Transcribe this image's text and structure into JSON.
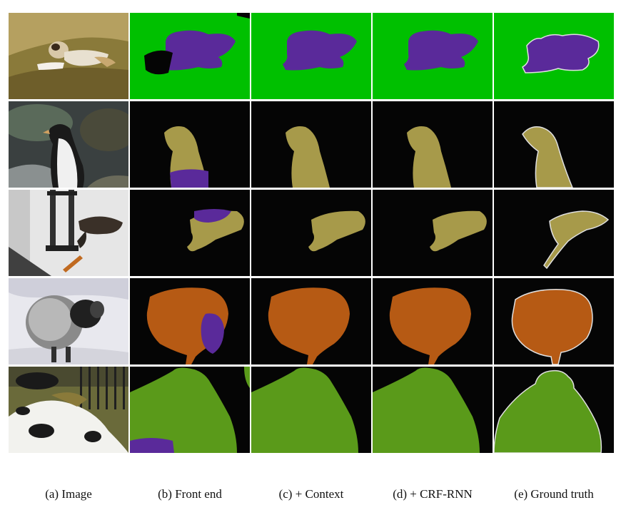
{
  "figure": {
    "columns": [
      {
        "id": "image",
        "caption": "(a) Image"
      },
      {
        "id": "front-end",
        "caption": "(b) Front end"
      },
      {
        "id": "context",
        "caption": "(c) + Context"
      },
      {
        "id": "crf-rnn",
        "caption": "(d) + CRF-RNN"
      },
      {
        "id": "ground-truth",
        "caption": "(e) Ground truth"
      }
    ],
    "rows": [
      {
        "id": "dog",
        "subject": "dog lying on sofa"
      },
      {
        "id": "penguin",
        "subject": "penguin"
      },
      {
        "id": "bird-feeder",
        "subject": "bird at feeder"
      },
      {
        "id": "sheep",
        "subject": "sheep"
      },
      {
        "id": "cow",
        "subject": "cow"
      }
    ],
    "colors": {
      "background": "#050505",
      "sofa": "#00c000",
      "dog": "#5a2a9a",
      "bird": "#a79a4a",
      "sheep": "#b65a14",
      "cow": "#5a9a1a",
      "wrong_class": "#5a2a9a",
      "boundary": "#e0e0e0"
    }
  }
}
